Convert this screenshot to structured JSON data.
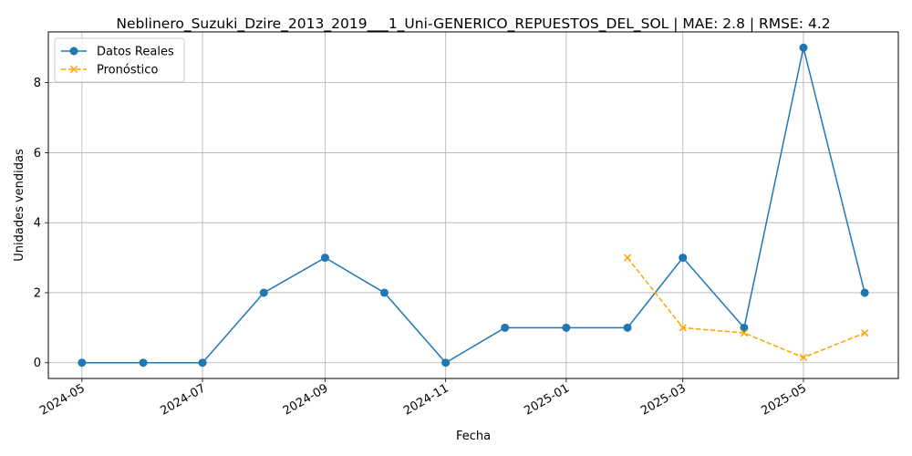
{
  "chart_data": {
    "type": "line",
    "title": "Neblinero_Suzuki_Dzire_2013_2019___1_Uni-GENERICO_REPUESTOS_DEL_SOL | MAE: 2.8 | RMSE: 4.2",
    "xlabel": "Fecha",
    "ylabel": "Unidades vendidas",
    "x_ticks": [
      "2024-05",
      "2024-07",
      "2024-09",
      "2024-11",
      "2025-01",
      "2025-03",
      "2025-05"
    ],
    "y_ticks": [
      0,
      2,
      4,
      6,
      8
    ],
    "ylim": [
      -0.45,
      9.45
    ],
    "xlim": [
      "2024-04-14",
      "2025-06-18"
    ],
    "grid": true,
    "legend_position": "top-left",
    "series": [
      {
        "name": "Datos Reales",
        "color": "#1f77b4",
        "marker": "circle",
        "linestyle": "solid",
        "x": [
          "2024-05-01",
          "2024-06-01",
          "2024-07-01",
          "2024-08-01",
          "2024-09-01",
          "2024-10-01",
          "2024-11-01",
          "2024-12-01",
          "2025-01-01",
          "2025-02-01",
          "2025-03-01",
          "2025-04-01",
          "2025-05-01",
          "2025-06-01"
        ],
        "y": [
          0,
          0,
          0,
          2,
          3,
          2,
          0,
          1,
          1,
          1,
          3,
          1,
          9,
          2
        ]
      },
      {
        "name": "Pronóstico",
        "color": "#ffa500",
        "marker": "x",
        "linestyle": "dashed",
        "x": [
          "2025-02-01",
          "2025-03-01",
          "2025-04-01",
          "2025-05-01",
          "2025-06-01"
        ],
        "y": [
          3,
          1,
          0.85,
          0.15,
          0.85
        ]
      }
    ]
  }
}
